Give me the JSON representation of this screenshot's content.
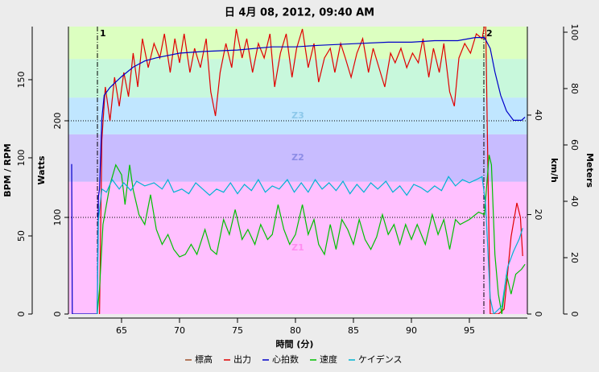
{
  "chart_data": {
    "type": "line",
    "title": "日 4月 08, 2012, 09:40 AM",
    "xlabel": "時間 (分)",
    "xlim": [
      60.42,
      100
    ],
    "xticks": [
      65,
      70,
      75,
      80,
      85,
      90,
      95
    ],
    "axes": {
      "left": {
        "label": "BPM / RPM",
        "lim": [
          0,
          184
        ],
        "ticks": [
          0,
          50,
          100,
          150
        ]
      },
      "left2": {
        "label": "Watts",
        "lim": [
          0,
          297.5
        ],
        "ticks": [
          0,
          100,
          200
        ]
      },
      "right": {
        "label": "km/h",
        "lim": [
          0,
          57.8
        ],
        "ticks": [
          0,
          20,
          40
        ]
      },
      "right2": {
        "label": "Meters",
        "lim": [
          0,
          102
        ],
        "ticks": [
          0,
          20,
          40,
          60,
          80,
          100
        ]
      }
    },
    "zones": [
      {
        "name": "Z1",
        "from": 0,
        "to": 137,
        "color": "#ffc0ff",
        "text_color": "#ff8cf0"
      },
      {
        "name": "Z2",
        "from": 137,
        "to": 186,
        "color": "#c8bcff",
        "text_color": "#8c8ce6"
      },
      {
        "name": "Z3",
        "from": 186,
        "to": 224,
        "color": "#c0e6ff",
        "text_color": "#8cc8ea"
      },
      {
        "from": 224,
        "to": 264,
        "color": "#c8f8dc"
      },
      {
        "from": 264,
        "to": 297.5,
        "color": "#dcffc0"
      }
    ],
    "reference_lines": [
      100,
      200
    ],
    "markers": [
      {
        "x": 62.92,
        "label": "1"
      },
      {
        "x": 96.25,
        "label": "2"
      }
    ],
    "series": [
      {
        "name": "標高",
        "color": "#a0522d",
        "axis": "right2",
        "x": [],
        "values": []
      },
      {
        "name": "出力",
        "color": "#e00000",
        "axis": "left2",
        "x": [
          63.1,
          63.3,
          63.6,
          64.0,
          64.4,
          64.8,
          65.2,
          65.6,
          66.0,
          66.4,
          66.8,
          67.3,
          67.8,
          68.3,
          68.7,
          69.2,
          69.6,
          70.0,
          70.4,
          70.9,
          71.3,
          71.8,
          72.3,
          72.7,
          73.1,
          73.5,
          74.0,
          74.5,
          74.9,
          75.4,
          75.8,
          76.3,
          76.8,
          77.3,
          77.8,
          78.2,
          78.7,
          79.2,
          79.7,
          80.1,
          80.6,
          81.1,
          81.6,
          82.0,
          82.5,
          83.0,
          83.4,
          83.9,
          84.3,
          84.8,
          85.3,
          85.8,
          86.3,
          86.7,
          87.2,
          87.7,
          88.2,
          88.6,
          89.1,
          89.6,
          90.1,
          90.6,
          91.0,
          91.5,
          91.9,
          92.4,
          92.8,
          93.3,
          93.7,
          94.1,
          94.6,
          95.1,
          95.6,
          96.1,
          96.4,
          96.6,
          96.8,
          97.5,
          98.0,
          98.6,
          99.1,
          99.4,
          99.6
        ],
        "values": [
          0,
          180,
          235,
          200,
          245,
          215,
          250,
          225,
          270,
          235,
          285,
          255,
          280,
          265,
          290,
          250,
          285,
          260,
          290,
          250,
          275,
          255,
          285,
          230,
          205,
          250,
          280,
          255,
          295,
          265,
          285,
          250,
          280,
          265,
          290,
          235,
          270,
          290,
          245,
          275,
          295,
          255,
          280,
          240,
          265,
          275,
          250,
          280,
          265,
          245,
          270,
          285,
          250,
          275,
          255,
          235,
          270,
          260,
          275,
          255,
          270,
          260,
          285,
          245,
          275,
          250,
          280,
          230,
          215,
          265,
          280,
          270,
          290,
          285,
          305,
          150,
          0,
          0,
          5,
          80,
          115,
          100,
          60
        ]
      },
      {
        "name": "心拍数",
        "color": "#0000c8",
        "axis": "left",
        "x": [
          60.7,
          60.75,
          62.9,
          63.0,
          63.1,
          63.3,
          63.5,
          64,
          65,
          66,
          67,
          68,
          70,
          72,
          75,
          78,
          80,
          82,
          85,
          88,
          90,
          92,
          94,
          95.5,
          96.3,
          96.8,
          97.2,
          97.7,
          98.2,
          98.8,
          99.5,
          99.8
        ],
        "values": [
          96,
          0,
          0,
          75,
          80,
          125,
          140,
          145,
          152,
          158,
          162,
          164,
          167,
          168,
          169,
          171,
          171,
          172,
          173,
          174,
          174,
          175,
          175,
          177,
          177,
          170,
          155,
          140,
          130,
          124,
          124,
          126
        ]
      },
      {
        "name": "速度",
        "color": "#00c000",
        "axis": "right",
        "x": [
          62.9,
          63.1,
          63.4,
          64,
          64.5,
          65,
          65.3,
          65.7,
          66.0,
          66.5,
          67,
          67.5,
          68,
          68.5,
          69,
          69.5,
          70,
          70.5,
          71,
          71.5,
          72.2,
          72.7,
          73.2,
          73.8,
          74.3,
          74.8,
          75.4,
          75.9,
          76.5,
          77,
          77.6,
          78,
          78.5,
          79,
          79.5,
          80,
          80.6,
          81.1,
          81.6,
          82,
          82.5,
          83,
          83.5,
          84,
          84.5,
          85,
          85.5,
          86,
          86.5,
          87,
          87.5,
          88,
          88.5,
          89,
          89.5,
          90,
          90.5,
          91.2,
          91.8,
          92.3,
          92.8,
          93.3,
          93.8,
          94.2,
          95,
          95.8,
          96.3,
          96.7,
          96.9,
          97.2,
          97.5,
          97.8,
          98.2,
          98.6,
          99,
          99.5,
          99.8
        ],
        "values": [
          0,
          5,
          18,
          26,
          30,
          28,
          22,
          30,
          25,
          20,
          18,
          24,
          17,
          14,
          16,
          13,
          11.5,
          12,
          14,
          12,
          17,
          13,
          12,
          19,
          16,
          21,
          15,
          17,
          14,
          18,
          15,
          16,
          22,
          17,
          14,
          16,
          22,
          16,
          19,
          14,
          12,
          18,
          13,
          19,
          17,
          14,
          19,
          15,
          13,
          15.5,
          20,
          16,
          18,
          14,
          18,
          15,
          18,
          14,
          20,
          16,
          19,
          13,
          19,
          18,
          19,
          20.5,
          20,
          32,
          30,
          12,
          4,
          0,
          8,
          4,
          8,
          9,
          10
        ]
      },
      {
        "name": "ケイデンス",
        "color": "#00b4d2",
        "axis": "left",
        "x": [
          62.9,
          63,
          63.3,
          63.7,
          64.2,
          64.8,
          65.2,
          65.8,
          66.3,
          67,
          67.8,
          68.5,
          69,
          69.5,
          70.2,
          70.8,
          71.4,
          72,
          72.6,
          73.2,
          73.8,
          74.4,
          75,
          75.6,
          76.2,
          76.8,
          77.4,
          78,
          78.6,
          79.3,
          79.9,
          80.5,
          81.1,
          81.7,
          82.3,
          82.9,
          83.5,
          84.1,
          84.7,
          85.3,
          85.9,
          86.5,
          87.1,
          87.8,
          88.4,
          89,
          89.6,
          90.2,
          90.8,
          91.4,
          92,
          92.6,
          93.2,
          93.8,
          94.4,
          95,
          95.6,
          96.1,
          96.4,
          96.8,
          97.1,
          97.8,
          98.3,
          98.8,
          99.3,
          99.6
        ],
        "values": [
          0,
          60,
          80,
          78,
          86,
          80,
          84,
          79,
          85,
          82,
          84,
          80,
          86,
          78,
          80,
          77,
          84,
          80,
          76,
          80,
          78,
          84,
          77,
          83,
          79,
          86,
          78,
          82,
          80,
          86,
          78,
          84,
          78,
          86,
          80,
          84,
          79,
          85,
          77,
          83,
          78,
          84,
          80,
          85,
          78,
          82,
          76,
          83,
          81,
          78,
          82,
          79,
          88,
          82,
          86,
          84,
          86,
          88,
          70,
          10,
          0,
          5,
          30,
          40,
          48,
          55
        ]
      }
    ]
  }
}
